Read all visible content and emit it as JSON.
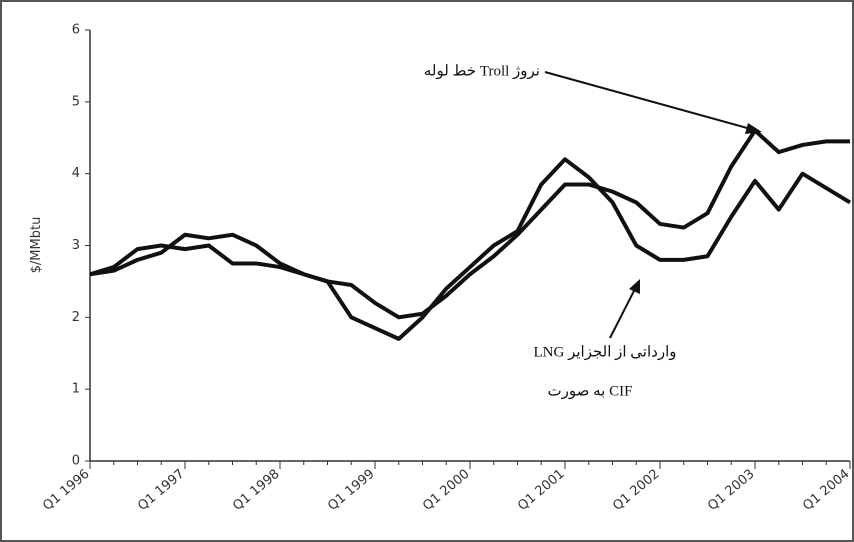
{
  "chart_data": {
    "type": "line",
    "y_label": "$/MMbtu",
    "categories": [
      "Q1 1996",
      null,
      null,
      null,
      "Q1 1997",
      null,
      null,
      null,
      "Q1 1998",
      null,
      null,
      null,
      "Q1 1999",
      null,
      null,
      null,
      "Q1 2000",
      null,
      null,
      null,
      "Q1 2001",
      null,
      null,
      null,
      "Q1 2002",
      null,
      null,
      null,
      "Q1 2003",
      null,
      null,
      null,
      "Q1 2004"
    ],
    "series": [
      {
        "name": "خط لوله Troll نروژ",
        "color": "#111111",
        "values": [
          2.6,
          2.65,
          2.8,
          2.9,
          3.15,
          3.1,
          3.15,
          3.0,
          2.75,
          2.6,
          2.5,
          2.45,
          2.2,
          2.0,
          2.05,
          2.3,
          2.6,
          2.85,
          3.15,
          3.5,
          3.85,
          3.85,
          3.75,
          3.6,
          3.3,
          3.25,
          3.45,
          4.1,
          4.6,
          4.3,
          4.4,
          4.45,
          4.45
        ]
      },
      {
        "name": "LNG وارداتی از الجزایر",
        "name_line2": "به صورت CIF",
        "color": "#111111",
        "values": [
          2.6,
          2.7,
          2.95,
          3.0,
          2.95,
          3.0,
          2.75,
          2.75,
          2.7,
          2.6,
          2.5,
          2.0,
          1.85,
          1.7,
          2.0,
          2.4,
          2.7,
          3.0,
          3.2,
          3.85,
          4.2,
          3.95,
          3.6,
          3.0,
          2.8,
          2.8,
          2.85,
          3.4,
          3.9,
          3.5,
          4.0,
          3.8,
          3.6
        ]
      }
    ],
    "ylim": [
      0,
      6
    ],
    "yticks": [
      0,
      1,
      2,
      3,
      4,
      5,
      6
    ],
    "grid": false
  }
}
